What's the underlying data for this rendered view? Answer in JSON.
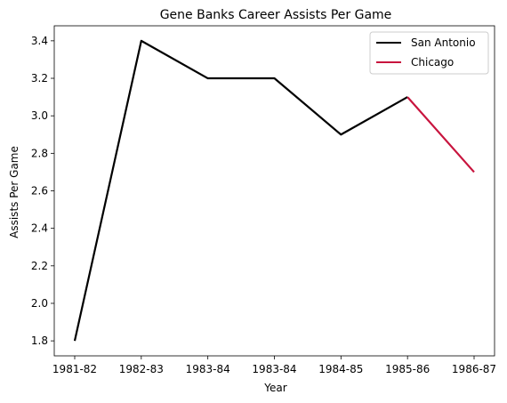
{
  "chart_data": {
    "type": "line",
    "title": "Gene Banks Career Assists Per Game",
    "xlabel": "Year",
    "ylabel": "Assists Per Game",
    "categories": [
      "1981-82",
      "1982-83",
      "1983-84",
      "1983-84",
      "1984-85",
      "1985-86",
      "1986-87"
    ],
    "ylim": [
      1.72,
      3.48
    ],
    "yticks": [
      1.8,
      2.0,
      2.2,
      2.4,
      2.6,
      2.8,
      3.0,
      3.2,
      3.4
    ],
    "ytick_labels": [
      "1.8",
      "2.0",
      "2.2",
      "2.4",
      "2.6",
      "2.8",
      "3.0",
      "3.2",
      "3.4"
    ],
    "grid": false,
    "legend_position": "top-right",
    "series": [
      {
        "name": "San Antonio",
        "color": "#000000",
        "x": [
          "1981-82",
          "1982-83",
          "1983-84",
          "1983-84",
          "1984-85",
          "1985-86"
        ],
        "x_index": [
          0,
          1,
          2,
          3,
          4,
          5
        ],
        "values": [
          1.8,
          3.4,
          3.2,
          3.2,
          2.9,
          3.1
        ]
      },
      {
        "name": "Chicago",
        "color": "#c8143e",
        "x": [
          "1985-86",
          "1986-87"
        ],
        "x_index": [
          5,
          6
        ],
        "values": [
          3.1,
          2.7
        ]
      }
    ]
  }
}
